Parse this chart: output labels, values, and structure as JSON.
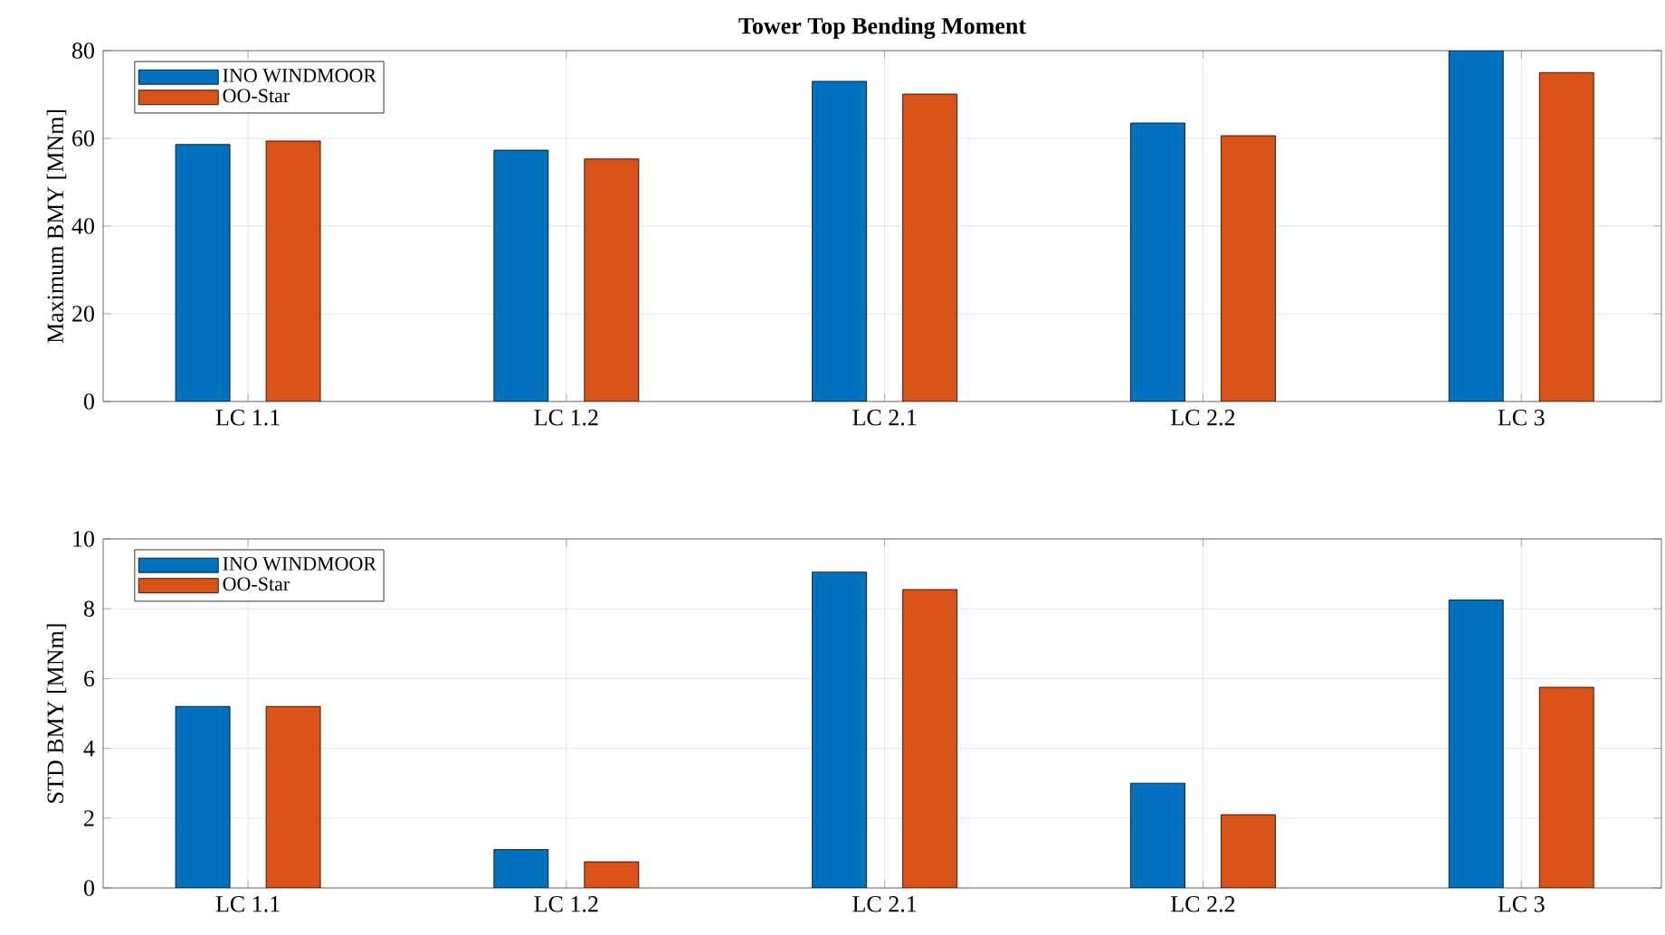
{
  "chart_data": [
    {
      "type": "bar",
      "title": "Tower Top Bending Moment",
      "ylabel": "Maximum BMY [MNm]",
      "categories": [
        "LC 1.1",
        "LC 1.2",
        "LC 2.1",
        "LC 2.2",
        "LC 3"
      ],
      "series": [
        {
          "name": "INO WINDMOOR",
          "color": "#0072bd",
          "values": [
            58.6,
            57.3,
            73.0,
            63.5,
            80.0
          ]
        },
        {
          "name": "OO-Star",
          "color": "#d95319",
          "values": [
            59.4,
            55.3,
            70.1,
            60.6,
            75.0
          ]
        }
      ],
      "ylim": [
        0,
        80
      ],
      "yticks": [
        0,
        20,
        40,
        60,
        80
      ],
      "grid": true,
      "legend": "top left"
    },
    {
      "type": "bar",
      "ylabel": "STD BMY [MNm]",
      "categories": [
        "LC 1.1",
        "LC 1.2",
        "LC 2.1",
        "LC 2.2",
        "LC 3"
      ],
      "series": [
        {
          "name": "INO WINDMOOR",
          "color": "#0072bd",
          "values": [
            5.2,
            1.1,
            9.05,
            3.0,
            8.25
          ]
        },
        {
          "name": "OO-Star",
          "color": "#d95319",
          "values": [
            5.2,
            0.75,
            8.55,
            2.1,
            5.75
          ]
        }
      ],
      "ylim": [
        0,
        10
      ],
      "yticks": [
        0,
        2,
        4,
        6,
        8,
        10
      ],
      "grid": true,
      "legend": "top left"
    }
  ]
}
